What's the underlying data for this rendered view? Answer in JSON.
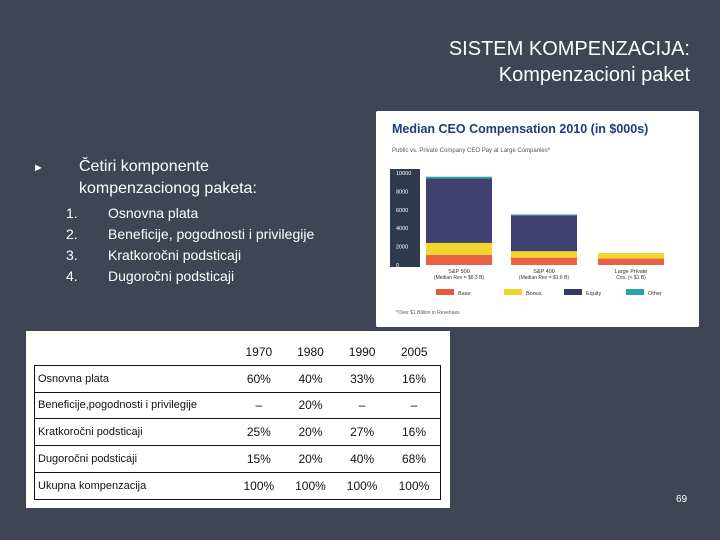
{
  "slide": {
    "title_line1": "SISTEM KOMPENZACIJA:",
    "title_line2": "Kompenzacioni paket",
    "bullet_line1": "Četiri komponente",
    "bullet_line2": "kompenzacionog paketa:",
    "list": [
      {
        "num": "1.",
        "text": "Osnovna plata"
      },
      {
        "num": "2.",
        "text": "Beneficije, pogodnosti i privilegije"
      },
      {
        "num": "3.",
        "text": "Kratkoročni podsticaji"
      },
      {
        "num": "4.",
        "text": "Dugoročni podsticaji"
      }
    ],
    "page_number": "69"
  },
  "colors": {
    "background": "#3f4555",
    "base": "#e8583c",
    "bonus": "#f2d422",
    "equity": "#37366a",
    "other": "#25a7a4",
    "chart_title": "#1f3c78",
    "y_band": "#2f3a4e"
  },
  "chart_data": {
    "type": "bar",
    "title": "Median CEO Compensation 2010 (in $000s)",
    "subtitle": "Public vs. Private Company CEO Pay at Large Companies*",
    "ylim": [
      0,
      10000
    ],
    "yticks": [
      "10000",
      "8000",
      "6000",
      "4000",
      "2000",
      "0"
    ],
    "categories": [
      {
        "line1": "S&P 500",
        "line2": "(Median Rev = $8.3 B)"
      },
      {
        "line1": "S&P 400",
        "line2": "(Median Rev = $1.6 B)"
      },
      {
        "line1": "Large Private",
        "line2": "Cos. (< $1 B)"
      }
    ],
    "series": [
      {
        "name": "Base",
        "values": [
          1100,
          800,
          700
        ]
      },
      {
        "name": "Bonus",
        "values": [
          1300,
          700,
          600
        ]
      },
      {
        "name": "Equity",
        "values": [
          7000,
          3900,
          0
        ]
      },
      {
        "name": "Other",
        "values": [
          200,
          100,
          0
        ]
      }
    ],
    "legend": [
      "Base",
      "Bonus",
      "Equity",
      "Other"
    ],
    "footnote": "*Over $1 Billion in Revenues"
  },
  "table": {
    "headers": [
      "",
      "1970",
      "1980",
      "1990",
      "2005"
    ],
    "rows": [
      {
        "label": "Osnovna plata",
        "values": [
          "60%",
          "40%",
          "33%",
          "16%"
        ]
      },
      {
        "label": "Beneficije,pogodnosti i privilegije",
        "values": [
          "–",
          "20%",
          "–",
          "–"
        ]
      },
      {
        "label": "Kratkoročni podsticaji",
        "values": [
          "25%",
          "20%",
          "27%",
          "16%"
        ]
      },
      {
        "label": "Dugoročni podsticaji",
        "values": [
          "15%",
          "20%",
          "40%",
          "68%"
        ]
      },
      {
        "label": "Ukupna kompenzacija",
        "values": [
          "100%",
          "100%",
          "100%",
          "100%"
        ]
      }
    ]
  }
}
